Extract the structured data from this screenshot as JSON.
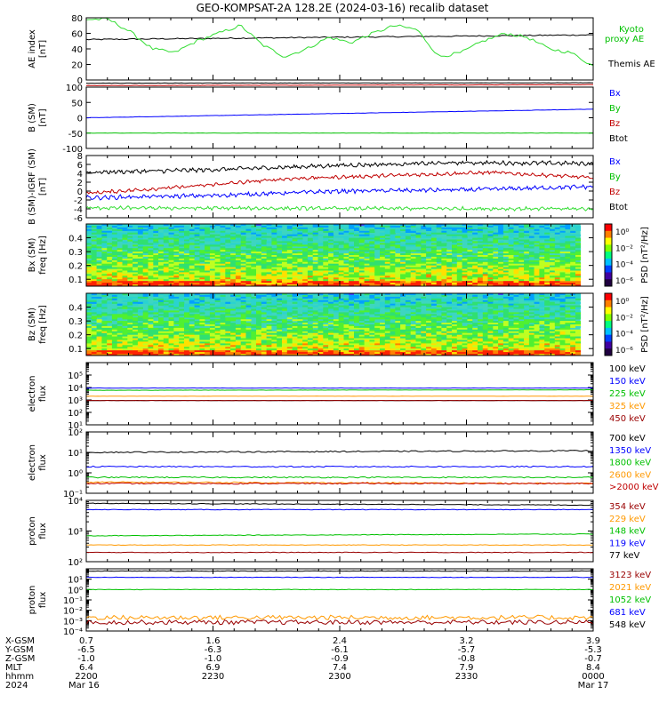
{
  "title": "GEO-KOMPSAT-2A 128.2E (2024-03-16) recalib dataset",
  "colors": {
    "black": "#000000",
    "red": "#c00000",
    "blue": "#0000ff",
    "green": "#00c000",
    "lime": "#33dd33",
    "orange": "#ff9900",
    "darkred": "#990000",
    "spec_bg": "#3dd6c0"
  },
  "panels": [
    {
      "id": "ae",
      "ylabel": [
        "AE index",
        "[nT]"
      ],
      "ylim": [
        0,
        80
      ],
      "ticks": [
        "0",
        "20",
        "40",
        "60",
        "80"
      ],
      "legend": [
        {
          "text": "Kyoto",
          "color": "#00c000"
        },
        {
          "text": "proxy AE",
          "color": "#00c000"
        },
        {
          "text": "Themis AE",
          "color": "#000000"
        }
      ]
    },
    {
      "id": "b_sm",
      "ylabel": [
        "B (SM)",
        "[nT]"
      ],
      "ylim": [
        -100,
        100
      ],
      "ticks": [
        "-100",
        "-50",
        "0",
        "50",
        "100"
      ],
      "legend": [
        {
          "text": "Bx",
          "color": "#0000ff"
        },
        {
          "text": "By",
          "color": "#00c000"
        },
        {
          "text": "Bz",
          "color": "#c00000"
        },
        {
          "text": "Btot",
          "color": "#000000"
        }
      ]
    },
    {
      "id": "b_igrf",
      "ylabel": [
        "B (SM)-IGRF (SM)",
        "[nT]"
      ],
      "ylim": [
        -6,
        8
      ],
      "ticks": [
        "-6",
        "-4",
        "-2",
        "0",
        "2",
        "4",
        "6",
        "8"
      ],
      "legend": [
        {
          "text": "Bx",
          "color": "#0000ff"
        },
        {
          "text": "By",
          "color": "#00c000"
        },
        {
          "text": "Bz",
          "color": "#c00000"
        },
        {
          "text": "Btot",
          "color": "#000000"
        }
      ]
    },
    {
      "id": "bx_spec",
      "ylabel": [
        "Bx (SM)",
        "freq [Hz]"
      ],
      "ylim": [
        0.05,
        0.5
      ],
      "ticks": [
        "0.1",
        "0.2",
        "0.3",
        "0.4"
      ],
      "colorbar_label": "PSD [nT²/Hz]",
      "colorbar_ticks": [
        "10⁰",
        "10⁻²",
        "10⁻⁴",
        "10⁻⁶"
      ]
    },
    {
      "id": "bz_spec",
      "ylabel": [
        "Bz (SM)",
        "freq [Hz]"
      ],
      "ylim": [
        0.05,
        0.5
      ],
      "ticks": [
        "0.1",
        "0.2",
        "0.3",
        "0.4"
      ],
      "colorbar_label": "PSD [nT²/Hz]",
      "colorbar_ticks": [
        "10⁰",
        "10⁻²",
        "10⁻⁴",
        "10⁻⁶"
      ]
    },
    {
      "id": "e_low",
      "ylabel": [
        "electron",
        "flux"
      ],
      "ylim": [
        1,
        100000
      ],
      "ticks": [
        "10¹",
        "10²",
        "10³",
        "10⁴",
        "10⁵"
      ],
      "legend": [
        {
          "text": "100 keV",
          "color": "#000000"
        },
        {
          "text": "150 keV",
          "color": "#0000ff"
        },
        {
          "text": "225 keV",
          "color": "#00c000"
        },
        {
          "text": "325 keV",
          "color": "#ff9900"
        },
        {
          "text": "450 keV",
          "color": "#990000"
        }
      ]
    },
    {
      "id": "e_high",
      "ylabel": [
        "electron",
        "flux"
      ],
      "ylim": [
        0.1,
        100
      ],
      "ticks": [
        "10⁻¹",
        "10⁰",
        "10¹",
        "10²"
      ],
      "legend": [
        {
          "text": "700 keV",
          "color": "#000000"
        },
        {
          "text": "1350 keV",
          "color": "#0000ff"
        },
        {
          "text": "1800 keV",
          "color": "#00c000"
        },
        {
          "text": "2600 keV",
          "color": "#ff9900"
        },
        {
          "text": ">2000 keV",
          "color": "#c00000"
        }
      ]
    },
    {
      "id": "p_low",
      "ylabel": [
        "proton",
        "flux"
      ],
      "ylim": [
        100,
        10000
      ],
      "ticks": [
        "10²",
        "10³",
        "10⁴"
      ],
      "legend": [
        {
          "text": "354 keV",
          "color": "#990000"
        },
        {
          "text": "229 keV",
          "color": "#ff9900"
        },
        {
          "text": "148 keV",
          "color": "#00c000"
        },
        {
          "text": "119 keV",
          "color": "#0000ff"
        },
        {
          "text": "77 keV",
          "color": "#000000"
        }
      ]
    },
    {
      "id": "p_high",
      "ylabel": [
        "proton",
        "flux"
      ],
      "ylim": [
        0.0001,
        100
      ],
      "ticks": [
        "10⁻⁴",
        "10⁻³",
        "10⁻²",
        "10⁻¹",
        "10⁰",
        "10¹"
      ],
      "legend": [
        {
          "text": "3123 keV",
          "color": "#990000"
        },
        {
          "text": "2021 keV",
          "color": "#ff9900"
        },
        {
          "text": "1052 keV",
          "color": "#00c000"
        },
        {
          "text": "681 keV",
          "color": "#0000ff"
        },
        {
          "text": "548 keV",
          "color": "#000000"
        }
      ]
    }
  ],
  "xaxis": {
    "row_labels": [
      "X-GSM",
      "Y-GSM",
      "Z-GSM",
      "MLT",
      "hhmm",
      "2024"
    ],
    "columns": [
      [
        "0.7",
        "-6.5",
        "-1.0",
        "6.4",
        "2200",
        "Mar 16"
      ],
      [
        "1.6",
        "-6.3",
        "-1.0",
        "6.9",
        "2230",
        ""
      ],
      [
        "2.4",
        "-6.1",
        "-0.9",
        "7.4",
        "2300",
        ""
      ],
      [
        "3.2",
        "-5.7",
        "-0.8",
        "7.9",
        "2330",
        ""
      ],
      [
        "3.9",
        "-5.3",
        "-0.7",
        "8.4",
        "0000",
        "Mar 17"
      ]
    ]
  },
  "chart_data": {
    "type": "line",
    "x_range": [
      "2024-03-16 22:00",
      "2024-03-17 00:00"
    ],
    "x_ticks": [
      "2200",
      "2230",
      "2300",
      "2330",
      "0000"
    ],
    "series": [
      {
        "panel": "AE index",
        "name": "Kyoto proxy AE",
        "x": [
          "22:00",
          "22:08",
          "22:13",
          "22:18",
          "22:23",
          "22:28",
          "22:33",
          "22:38",
          "22:43",
          "22:48",
          "22:53",
          "22:58",
          "23:03",
          "23:08",
          "23:13",
          "23:18",
          "23:23",
          "23:28",
          "23:33",
          "23:38",
          "23:43",
          "23:48",
          "23:53",
          "23:58"
        ],
        "values": [
          78,
          78,
          62,
          40,
          35,
          50,
          60,
          70,
          45,
          30,
          40,
          55,
          48,
          60,
          70,
          65,
          30,
          35,
          50,
          60,
          55,
          40,
          35,
          18
        ]
      },
      {
        "panel": "AE index",
        "name": "Themis AE",
        "x": [
          "22:00",
          "23:00",
          "00:00"
        ],
        "values": [
          52,
          55,
          58
        ]
      },
      {
        "panel": "B (SM)",
        "name": "Bx",
        "x": [
          "22:00",
          "00:00"
        ],
        "values": [
          0,
          28
        ]
      },
      {
        "panel": "B (SM)",
        "name": "By",
        "x": [
          "22:00",
          "00:00"
        ],
        "values": [
          -50,
          -50
        ]
      },
      {
        "panel": "B (SM)",
        "name": "Bz",
        "x": [
          "22:00",
          "00:00"
        ],
        "values": [
          105,
          108
        ]
      },
      {
        "panel": "B (SM)",
        "name": "Btot",
        "x": [
          "22:00",
          "00:00"
        ],
        "values": [
          113,
          114
        ]
      },
      {
        "panel": "B (SM)-IGRF (SM)",
        "name": "Btot",
        "x": [
          "22:00",
          "22:30",
          "23:00",
          "23:30",
          "00:00"
        ],
        "values": [
          4.2,
          4.8,
          5.8,
          6.4,
          6.2
        ]
      },
      {
        "panel": "B (SM)-IGRF (SM)",
        "name": "Bz",
        "x": [
          "22:00",
          "22:30",
          "23:00",
          "23:30",
          "23:45",
          "00:00"
        ],
        "values": [
          -0.5,
          1.0,
          2.8,
          3.5,
          4.2,
          3.0
        ]
      },
      {
        "panel": "B (SM)-IGRF (SM)",
        "name": "Bx",
        "x": [
          "22:00",
          "22:30",
          "23:00",
          "23:30",
          "00:00"
        ],
        "values": [
          -1.5,
          -1.0,
          0,
          0.3,
          1.0
        ]
      },
      {
        "panel": "B (SM)-IGRF (SM)",
        "name": "By",
        "x": [
          "22:00",
          "23:00",
          "00:00"
        ],
        "values": [
          -3.8,
          -3.9,
          -4.0
        ]
      },
      {
        "panel": "electron flux (low)",
        "name": "100 keV",
        "x": [
          "22:00",
          "00:00"
        ],
        "values": [
          90,
          90
        ]
      },
      {
        "panel": "electron flux (low)",
        "name": "150 keV",
        "x": [
          "22:00",
          "00:00"
        ],
        "values": [
          900,
          900
        ]
      },
      {
        "panel": "electron flux (low)",
        "name": "225 keV",
        "x": [
          "22:00",
          "00:00"
        ],
        "values": [
          600,
          650
        ]
      },
      {
        "panel": "electron flux (low)",
        "name": "325 keV",
        "x": [
          "22:00",
          "00:00"
        ],
        "values": [
          200,
          200
        ]
      },
      {
        "panel": "electron flux (low)",
        "name": "450 keV",
        "x": [
          "22:00",
          "00:00"
        ],
        "values": [
          90,
          90
        ]
      },
      {
        "panel": "electron flux (high)",
        "name": "700 keV",
        "x": [
          "22:00",
          "00:00"
        ],
        "values": [
          10,
          12
        ]
      },
      {
        "panel": "electron flux (high)",
        "name": "1350 keV",
        "x": [
          "22:00",
          "00:00"
        ],
        "values": [
          2.0,
          2.0
        ]
      },
      {
        "panel": "electron flux (high)",
        "name": "1800 keV",
        "x": [
          "22:00",
          "00:00"
        ],
        "values": [
          0.6,
          0.6
        ]
      },
      {
        "panel": "electron flux (high)",
        "name": "2600 keV",
        "x": [
          "22:00",
          "00:00"
        ],
        "values": [
          0.35,
          0.3
        ]
      },
      {
        "panel": "electron flux (high)",
        "name": ">2000 keV",
        "x": [
          "22:00",
          "00:00"
        ],
        "values": [
          0.3,
          0.3
        ]
      },
      {
        "panel": "proton flux (low)",
        "name": "77 keV",
        "x": [
          "22:00",
          "00:00"
        ],
        "values": [
          8000,
          7000
        ]
      },
      {
        "panel": "proton flux (low)",
        "name": "119 keV",
        "x": [
          "22:00",
          "00:00"
        ],
        "values": [
          5000,
          5000
        ]
      },
      {
        "panel": "proton flux (low)",
        "name": "148 keV",
        "x": [
          "22:00",
          "00:00"
        ],
        "values": [
          700,
          800
        ]
      },
      {
        "panel": "proton flux (low)",
        "name": "229 keV",
        "x": [
          "22:00",
          "00:00"
        ],
        "values": [
          350,
          350
        ]
      },
      {
        "panel": "proton flux (low)",
        "name": "354 keV",
        "x": [
          "22:00",
          "00:00"
        ],
        "values": [
          200,
          200
        ]
      },
      {
        "panel": "proton flux (high)",
        "name": "548 keV",
        "x": [
          "22:00",
          "00:00"
        ],
        "values": [
          60,
          60
        ]
      },
      {
        "panel": "proton flux (high)",
        "name": "681 keV",
        "x": [
          "22:00",
          "00:00"
        ],
        "values": [
          15,
          15
        ]
      },
      {
        "panel": "proton flux (high)",
        "name": "1052 keV",
        "x": [
          "22:00",
          "00:00"
        ],
        "values": [
          1.0,
          1.0
        ]
      },
      {
        "panel": "proton flux (high)",
        "name": "2021 keV",
        "x": [
          "22:00",
          "00:00"
        ],
        "values": [
          0.002,
          0.002
        ]
      },
      {
        "panel": "proton flux (high)",
        "name": "3123 keV",
        "x": [
          "22:00",
          "00:00"
        ],
        "values": [
          0.0007,
          0.0007
        ]
      }
    ]
  }
}
